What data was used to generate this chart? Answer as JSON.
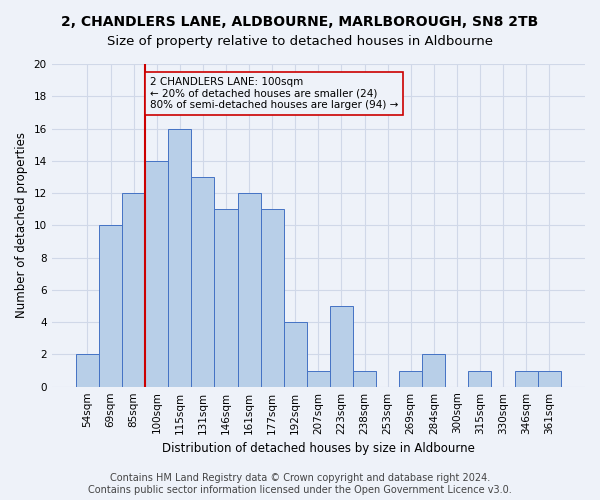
{
  "title": "2, CHANDLERS LANE, ALDBOURNE, MARLBOROUGH, SN8 2TB",
  "subtitle": "Size of property relative to detached houses in Aldbourne",
  "xlabel": "Distribution of detached houses by size in Aldbourne",
  "ylabel": "Number of detached properties",
  "bar_labels": [
    "54sqm",
    "69sqm",
    "85sqm",
    "100sqm",
    "115sqm",
    "131sqm",
    "146sqm",
    "161sqm",
    "177sqm",
    "192sqm",
    "207sqm",
    "223sqm",
    "238sqm",
    "253sqm",
    "269sqm",
    "284sqm",
    "300sqm",
    "315sqm",
    "330sqm",
    "346sqm",
    "361sqm"
  ],
  "bar_values": [
    2,
    10,
    12,
    14,
    16,
    13,
    11,
    12,
    11,
    4,
    1,
    5,
    1,
    0,
    1,
    2,
    0,
    1,
    0,
    1,
    1
  ],
  "bar_color": "#b8cfe8",
  "bar_edge_color": "#4472c4",
  "vline_x_index": 3,
  "vline_color": "#cc0000",
  "annotation_text": "2 CHANDLERS LANE: 100sqm\n← 20% of detached houses are smaller (24)\n80% of semi-detached houses are larger (94) →",
  "annotation_box_color": "#cc0000",
  "ylim": [
    0,
    20
  ],
  "yticks": [
    0,
    2,
    4,
    6,
    8,
    10,
    12,
    14,
    16,
    18,
    20
  ],
  "grid_color": "#d0d8e8",
  "background_color": "#eef2f9",
  "footer_line1": "Contains HM Land Registry data © Crown copyright and database right 2024.",
  "footer_line2": "Contains public sector information licensed under the Open Government Licence v3.0.",
  "title_fontsize": 10,
  "subtitle_fontsize": 9.5,
  "xlabel_fontsize": 8.5,
  "ylabel_fontsize": 8.5,
  "tick_fontsize": 7.5,
  "footer_fontsize": 7,
  "annotation_fontsize": 7.5
}
